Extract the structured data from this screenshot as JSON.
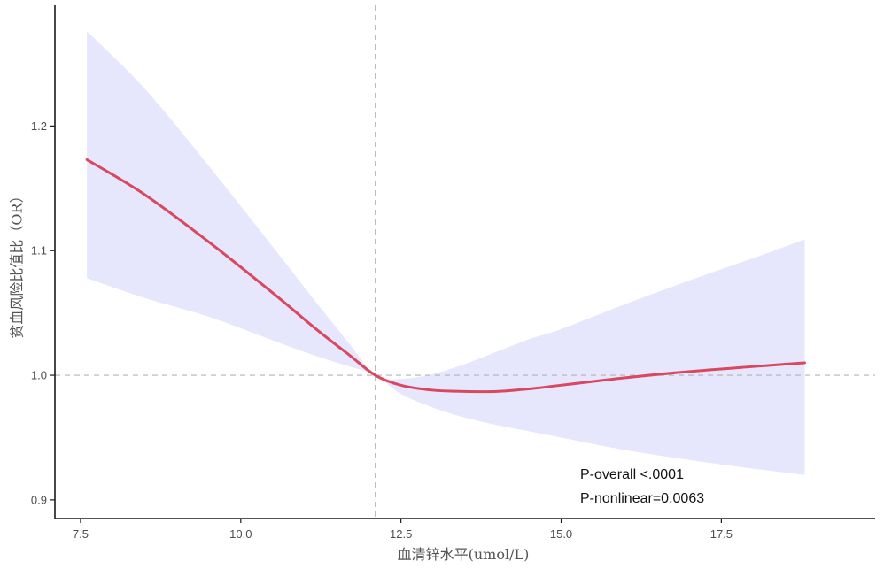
{
  "chart_data": {
    "type": "line",
    "title": "",
    "xlabel": "血清锌水平(umol/L)",
    "ylabel": "贫血风险比值比（OR）",
    "xlim": [
      7.1,
      19.9
    ],
    "ylim": [
      0.885,
      1.294
    ],
    "x_ticks": [
      7.5,
      10.0,
      12.5,
      15.0,
      17.5
    ],
    "x_tick_labels": [
      "7.5",
      "10.0",
      "12.5",
      "15.0",
      "17.5"
    ],
    "y_ticks": [
      0.9,
      1.0,
      1.1,
      1.2
    ],
    "y_tick_labels": [
      "0.9",
      "1.0",
      "1.1",
      "1.2"
    ],
    "grid": false,
    "reference_lines": {
      "y": 1.0,
      "x": 12.1
    },
    "colors": {
      "line": "#d9485f",
      "band": "#e6e6fc",
      "reference": "#b3b3b3",
      "axis": "#1a1a1a"
    },
    "series": [
      {
        "x": [
          7.6,
          8.5,
          9.5,
          10.5,
          11.2,
          11.7,
          12.1,
          12.5,
          13.0,
          13.5,
          14.0,
          14.5,
          15.0,
          16.0,
          17.0,
          18.0,
          18.8
        ],
        "y": [
          1.173,
          1.145,
          1.107,
          1.066,
          1.036,
          1.016,
          1.0,
          0.992,
          0.988,
          0.987,
          0.987,
          0.989,
          0.992,
          0.998,
          1.003,
          1.007,
          1.01
        ],
        "lower": [
          1.078,
          1.062,
          1.047,
          1.028,
          1.015,
          1.007,
          1.0,
          0.985,
          0.974,
          0.966,
          0.96,
          0.955,
          0.95,
          0.94,
          0.932,
          0.925,
          0.92
        ],
        "upper": [
          1.276,
          1.23,
          1.168,
          1.103,
          1.057,
          1.025,
          1.0,
          0.997,
          1.001,
          1.009,
          1.019,
          1.029,
          1.037,
          1.057,
          1.076,
          1.094,
          1.109
        ]
      }
    ],
    "annotations": [
      "P-overall <.0001",
      "P-nonlinear=0.0063"
    ]
  }
}
